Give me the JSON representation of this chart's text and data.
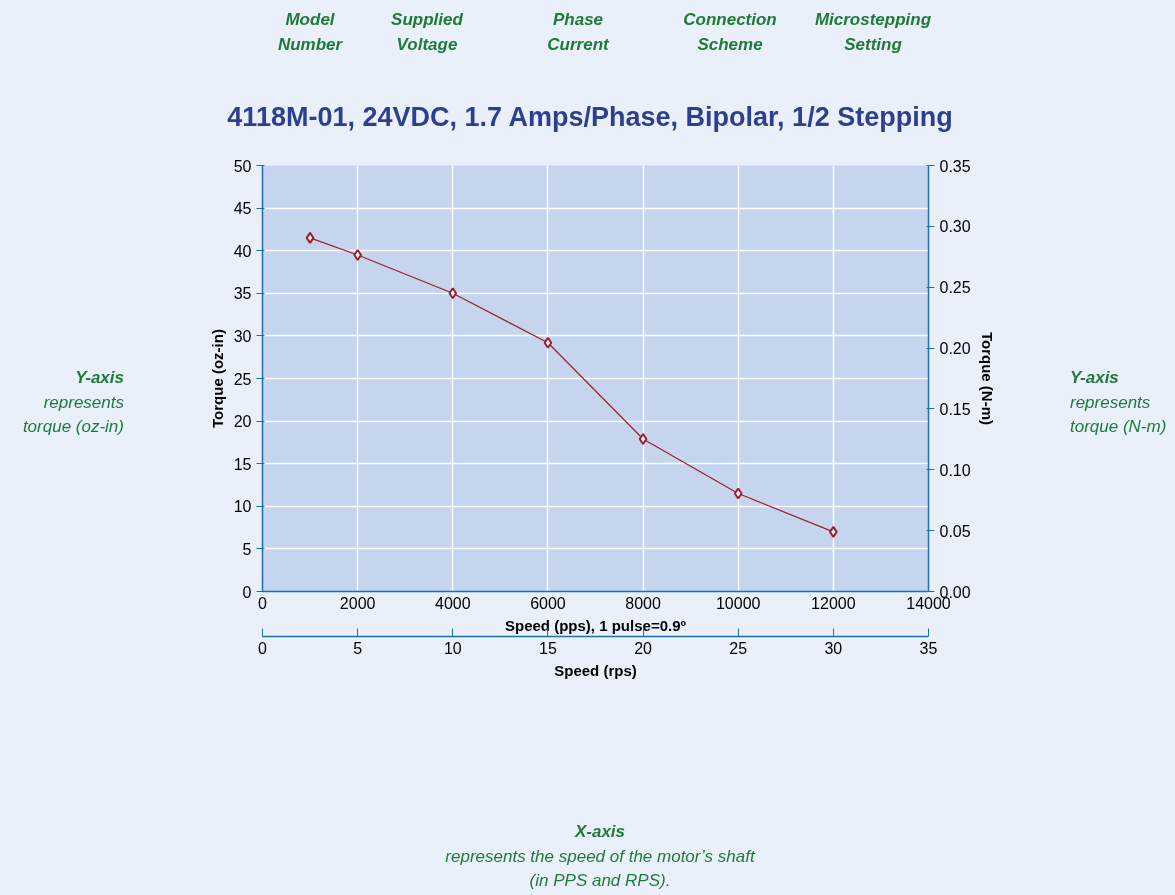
{
  "chart_data": {
    "type": "line",
    "title": "4118M-01, 24VDC, 1.7 Amps/Phase, Bipolar, 1/2 Stepping",
    "xlabel": "Speed (pps), 1 pulse=0.9º",
    "ylabel": "Torque (oz-in)",
    "y2label": "Torque (N-m)",
    "x2label": "Speed (rps)",
    "x": [
      1000,
      2000,
      4000,
      6000,
      8000,
      10000,
      12000
    ],
    "series": [
      {
        "color": "#a01c2c",
        "values": [
          41.5,
          39.5,
          35,
          29.2,
          17.9,
          11.5,
          7
        ]
      }
    ],
    "xlim": [
      0,
      14000
    ],
    "xticks": [
      0,
      2000,
      4000,
      6000,
      8000,
      10000,
      12000,
      14000
    ],
    "ylim": [
      0,
      50
    ],
    "yticks": [
      0,
      5,
      10,
      15,
      20,
      25,
      30,
      35,
      40,
      45,
      50
    ],
    "y2lim": [
      0,
      0.35
    ],
    "y2ticks": [
      {
        "value": 0,
        "label": "0.00"
      },
      {
        "value": 0.05,
        "label": "0.05"
      },
      {
        "value": 0.1,
        "label": "0.10"
      },
      {
        "value": 0.15,
        "label": "0.15"
      },
      {
        "value": 0.2,
        "label": "0.20"
      },
      {
        "value": 0.25,
        "label": "0.25"
      },
      {
        "value": 0.3,
        "label": "0.30"
      },
      {
        "value": 0.35,
        "label": "0.35"
      }
    ],
    "x2lim": [
      0,
      35
    ],
    "x2ticks": [
      0,
      5,
      10,
      15,
      20,
      25,
      30,
      35
    ],
    "grid": true,
    "marker": "diamond",
    "line_style": "solid",
    "annotations": [
      "Model\nNumber",
      "Supplied\nVoltage",
      "Phase\nCurrent",
      "Connection\nScheme",
      "Microstepping\nSetting",
      "Y-axis\nrepresents\ntorque (oz-in)",
      "Y-axis\nrepresents\ntorque (N-m)",
      "X-axis\nrepresents the speed of the motor’s shaft\n(in PPS and RPS)."
    ]
  }
}
